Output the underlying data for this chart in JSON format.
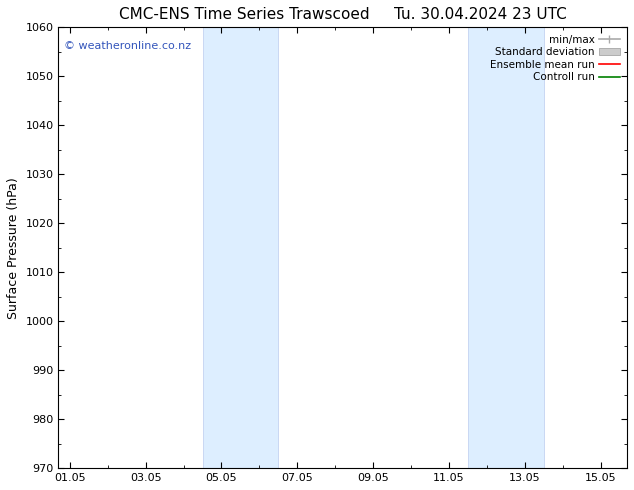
{
  "title_left": "CMC-ENS Time Series Trawscoed",
  "title_right": "Tu. 30.04.2024 23 UTC",
  "ylabel": "Surface Pressure (hPa)",
  "xlabel": "",
  "ylim": [
    970,
    1060
  ],
  "yticks": [
    970,
    980,
    990,
    1000,
    1010,
    1020,
    1030,
    1040,
    1050,
    1060
  ],
  "xtick_labels": [
    "01.05",
    "03.05",
    "05.05",
    "07.05",
    "09.05",
    "11.05",
    "13.05",
    "15.05"
  ],
  "xtick_positions": [
    0,
    2,
    4,
    6,
    8,
    10,
    12,
    14
  ],
  "xmin": -0.3,
  "xmax": 14.7,
  "shaded_bands": [
    {
      "x_start": 3.5,
      "x_end": 5.5
    },
    {
      "x_start": 10.5,
      "x_end": 12.5
    }
  ],
  "shade_color": "#ddeeff",
  "shade_edge_color": "#bbccee",
  "watermark_text": "© weatheronline.co.nz",
  "watermark_color": "#3355bb",
  "legend_entries": [
    {
      "label": "min/max",
      "color": "#aaaaaa",
      "lw": 1.2,
      "style": "line_with_cap"
    },
    {
      "label": "Standard deviation",
      "color": "#cccccc",
      "lw": 7,
      "style": "band"
    },
    {
      "label": "Ensemble mean run",
      "color": "red",
      "lw": 1.2,
      "style": "line"
    },
    {
      "label": "Controll run",
      "color": "green",
      "lw": 1.2,
      "style": "line"
    }
  ],
  "bg_color": "#ffffff",
  "plot_bg_color": "#ffffff",
  "title_fontsize": 11,
  "axis_label_fontsize": 9,
  "tick_fontsize": 8,
  "watermark_fontsize": 8,
  "legend_fontsize": 7.5
}
